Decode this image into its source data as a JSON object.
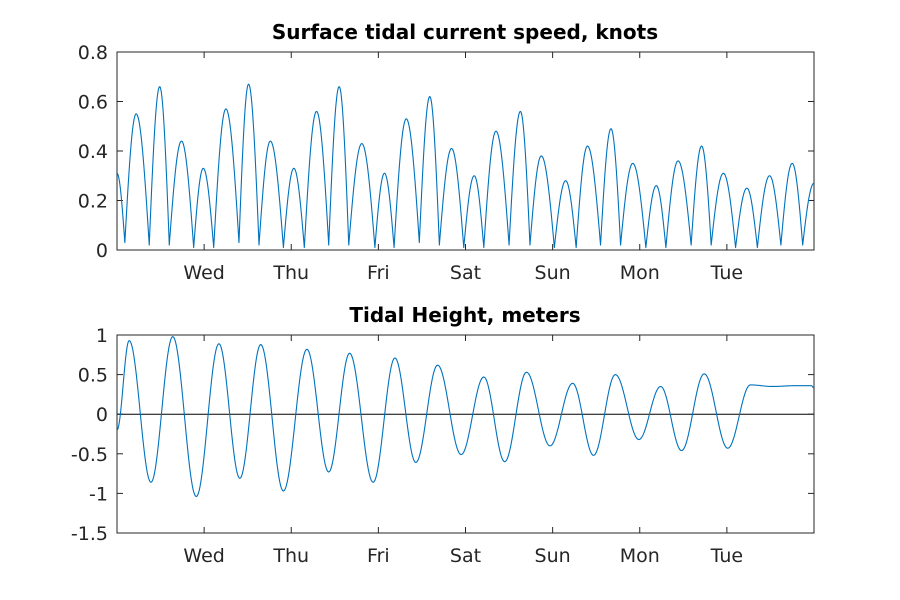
{
  "colors": {
    "series": "#0072BD",
    "axis": "#262626",
    "zero_line": "#000000"
  },
  "chart_data": [
    {
      "type": "line",
      "title": "Surface tidal current speed, knots",
      "xlabel": "",
      "ylabel": "",
      "xlim": [
        0,
        8
      ],
      "ylim": [
        0,
        0.8
      ],
      "x_unit": "days",
      "xticks": [
        {
          "x": 1,
          "label": "Wed"
        },
        {
          "x": 2,
          "label": "Thu"
        },
        {
          "x": 3,
          "label": "Fri"
        },
        {
          "x": 4,
          "label": "Sat"
        },
        {
          "x": 5,
          "label": "Sun"
        },
        {
          "x": 6,
          "label": "Mon"
        },
        {
          "x": 7,
          "label": "Tue"
        }
      ],
      "yticks": [
        {
          "y": 0,
          "label": "0"
        },
        {
          "y": 0.2,
          "label": "0.2"
        },
        {
          "y": 0.4,
          "label": "0.4"
        },
        {
          "y": 0.6,
          "label": "0.6"
        },
        {
          "y": 0.8,
          "label": "0.8"
        }
      ],
      "series": [
        {
          "x": [
            0,
            0.09,
            0.22,
            0.37,
            0.49,
            0.6,
            0.74,
            0.88,
            0.99,
            1.11,
            1.25,
            1.4,
            1.51,
            1.63,
            1.76,
            1.91,
            2.03,
            2.15,
            2.29,
            2.43,
            2.55,
            2.66,
            2.81,
            2.96,
            3.07,
            3.18,
            3.32,
            3.47,
            3.59,
            3.7,
            3.84,
            3.98,
            4.1,
            4.21,
            4.35,
            4.5,
            4.63,
            4.74,
            4.87,
            5.02,
            5.15,
            5.27,
            5.4,
            5.55,
            5.67,
            5.78,
            5.92,
            6.07,
            6.19,
            6.3,
            6.44,
            6.59,
            6.71,
            6.82,
            6.96,
            7.1,
            7.23,
            7.35,
            7.49,
            7.62,
            7.75,
            7.87,
            8.0
          ],
          "values": [
            0.31,
            0.03,
            0.55,
            0.02,
            0.66,
            0.02,
            0.44,
            0.01,
            0.33,
            0.01,
            0.57,
            0.03,
            0.67,
            0.02,
            0.44,
            0.01,
            0.33,
            0.01,
            0.56,
            0.02,
            0.66,
            0.02,
            0.43,
            0.01,
            0.31,
            0.01,
            0.53,
            0.03,
            0.62,
            0.02,
            0.41,
            0.01,
            0.3,
            0.01,
            0.48,
            0.02,
            0.56,
            0.02,
            0.38,
            0.01,
            0.28,
            0.01,
            0.42,
            0.02,
            0.49,
            0.02,
            0.35,
            0.01,
            0.26,
            0.01,
            0.36,
            0.02,
            0.42,
            0.02,
            0.31,
            0.01,
            0.25,
            0.01,
            0.3,
            0.02,
            0.35,
            0.02,
            0.27
          ]
        }
      ]
    },
    {
      "type": "line",
      "title": "Tidal Height, meters",
      "xlabel": "",
      "ylabel": "",
      "xlim": [
        0,
        8
      ],
      "ylim": [
        -1.5,
        1
      ],
      "x_unit": "days",
      "zero_line": true,
      "xticks": [
        {
          "x": 1,
          "label": "Wed"
        },
        {
          "x": 2,
          "label": "Thu"
        },
        {
          "x": 3,
          "label": "Fri"
        },
        {
          "x": 4,
          "label": "Sat"
        },
        {
          "x": 5,
          "label": "Sun"
        },
        {
          "x": 6,
          "label": "Mon"
        },
        {
          "x": 7,
          "label": "Tue"
        }
      ],
      "yticks": [
        {
          "y": -1.5,
          "label": "-1.5"
        },
        {
          "y": -1,
          "label": "-1"
        },
        {
          "y": -0.5,
          "label": "-0.5"
        },
        {
          "y": 0,
          "label": "0"
        },
        {
          "y": 0.5,
          "label": "0.5"
        },
        {
          "y": 1,
          "label": "1"
        }
      ],
      "series": [
        {
          "x": [
            0,
            0.14,
            0.39,
            0.64,
            0.91,
            1.17,
            1.41,
            1.65,
            1.91,
            2.18,
            2.43,
            2.67,
            2.94,
            3.19,
            3.43,
            3.68,
            3.95,
            4.21,
            4.45,
            4.7,
            4.97,
            5.23,
            5.47,
            5.72,
            5.99,
            6.24,
            6.48,
            6.74,
            7.01,
            7.27,
            7.52,
            7.78,
            7.97,
            8.0
          ],
          "values": [
            -0.2,
            0.93,
            -0.86,
            0.98,
            -1.04,
            0.89,
            -0.81,
            0.88,
            -0.97,
            0.82,
            -0.73,
            0.77,
            -0.86,
            0.71,
            -0.61,
            0.62,
            -0.51,
            0.47,
            -0.6,
            0.53,
            -0.4,
            0.39,
            -0.52,
            0.5,
            -0.32,
            0.35,
            -0.46,
            0.51,
            -0.43,
            0.37,
            0.35,
            0.36,
            0.36,
            0.33
          ]
        }
      ]
    }
  ]
}
